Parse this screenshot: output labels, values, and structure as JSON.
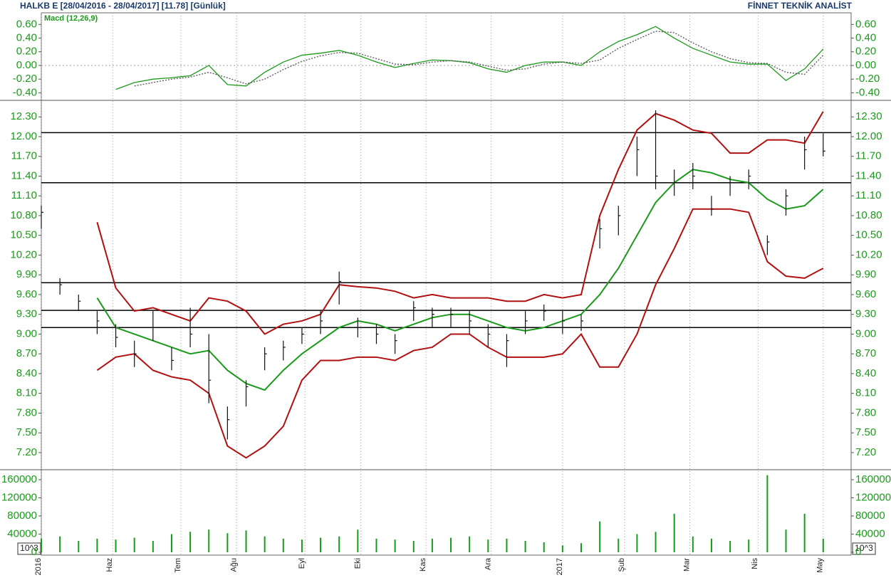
{
  "header": {
    "title": "HALKB E  [28/04/2016 - 28/04/2017]  [11.78]  [Günlük]",
    "brand": "FİNNET TEKNİK ANALİST"
  },
  "chart_data": [
    {
      "type": "line",
      "subtitle": "Macd (12,26,9)",
      "x": [
        0,
        6,
        12,
        18,
        24,
        30,
        36,
        42,
        48,
        54,
        60,
        66,
        72,
        78,
        84,
        90,
        96,
        102,
        108,
        114,
        120,
        126,
        132,
        138,
        144,
        150,
        156,
        162,
        168,
        174,
        180,
        186,
        192,
        198,
        204,
        210,
        216,
        222,
        228,
        234,
        240,
        246,
        252
      ],
      "series": [
        {
          "color": "#1a9a1a",
          "dash": false,
          "values": [
            null,
            null,
            null,
            null,
            -0.35,
            -0.25,
            -0.2,
            -0.18,
            -0.15,
            0.0,
            -0.28,
            -0.3,
            -0.1,
            0.05,
            0.15,
            0.18,
            0.22,
            0.15,
            0.05,
            -0.03,
            0.03,
            0.08,
            0.07,
            0.04,
            -0.05,
            -0.1,
            0.0,
            0.05,
            0.05,
            0.0,
            0.2,
            0.35,
            0.45,
            0.57,
            0.4,
            0.25,
            0.15,
            0.05,
            0.02,
            0.02,
            -0.22,
            -0.05,
            0.24
          ]
        },
        {
          "color": "#555555",
          "dash": true,
          "values": [
            null,
            null,
            null,
            null,
            null,
            -0.3,
            -0.25,
            -0.2,
            -0.17,
            -0.1,
            -0.18,
            -0.27,
            -0.2,
            -0.06,
            0.06,
            0.14,
            0.19,
            0.18,
            0.1,
            0.02,
            0.01,
            0.05,
            0.07,
            0.05,
            -0.01,
            -0.07,
            -0.05,
            0.02,
            0.05,
            0.03,
            0.08,
            0.25,
            0.38,
            0.5,
            0.48,
            0.33,
            0.2,
            0.1,
            0.04,
            0.03,
            -0.1,
            -0.13,
            0.15
          ]
        }
      ],
      "zero": 0,
      "ylim": [
        -0.5,
        0.77
      ],
      "yticks": [
        {
          "value": 0.6,
          "label": "0.60"
        },
        {
          "value": 0.4,
          "label": "0.40"
        },
        {
          "value": 0.2,
          "label": "0.20"
        },
        {
          "value": 0,
          "label": "0.00"
        },
        {
          "value": -0.2,
          "label": "-0.20"
        },
        {
          "value": -0.4,
          "label": "-0.40"
        }
      ]
    },
    {
      "type": "ohlc",
      "x": [
        0,
        6,
        12,
        18,
        24,
        30,
        36,
        42,
        48,
        54,
        60,
        66,
        72,
        78,
        84,
        90,
        96,
        102,
        108,
        114,
        120,
        126,
        132,
        138,
        144,
        150,
        156,
        162,
        168,
        174,
        180,
        186,
        192,
        198,
        204,
        210,
        216,
        222,
        228,
        234,
        240,
        246,
        252
      ],
      "high": [
        10.95,
        9.85,
        9.6,
        9.35,
        9.15,
        8.9,
        9.35,
        8.8,
        9.4,
        9.0,
        7.9,
        8.3,
        8.8,
        8.9,
        9.1,
        9.35,
        9.95,
        9.25,
        9.15,
        9.0,
        9.5,
        9.4,
        9.4,
        9.35,
        9.15,
        9.0,
        9.35,
        9.45,
        9.35,
        9.3,
        10.75,
        10.95,
        12.0,
        12.4,
        11.5,
        11.6,
        11.1,
        11.4,
        11.5,
        10.5,
        11.2,
        12.0,
        12.05
      ],
      "low": [
        10.6,
        9.6,
        9.35,
        9.0,
        8.8,
        8.5,
        8.9,
        8.45,
        8.8,
        7.95,
        7.4,
        7.9,
        8.45,
        8.6,
        8.85,
        9.0,
        9.45,
        8.95,
        8.85,
        8.7,
        9.2,
        9.1,
        9.1,
        9.0,
        8.8,
        8.5,
        9.0,
        9.2,
        9.0,
        9.05,
        10.3,
        10.5,
        11.4,
        11.2,
        11.1,
        11.2,
        10.8,
        11.1,
        11.2,
        10.2,
        10.8,
        11.5,
        11.7
      ],
      "close": [
        10.85,
        9.75,
        9.5,
        9.2,
        8.95,
        8.7,
        9.1,
        8.6,
        9.0,
        8.3,
        7.7,
        8.2,
        8.7,
        8.8,
        9.0,
        9.2,
        9.8,
        9.1,
        9.0,
        8.9,
        9.4,
        9.3,
        9.3,
        9.2,
        9.0,
        8.9,
        9.2,
        9.35,
        9.2,
        9.2,
        10.6,
        10.8,
        11.8,
        11.4,
        11.3,
        11.4,
        10.9,
        11.3,
        11.4,
        10.4,
        11.1,
        11.8,
        11.78
      ],
      "series": [
        {
          "color": "#b01010",
          "values": [
            null,
            null,
            null,
            10.7,
            9.7,
            9.35,
            9.4,
            9.3,
            9.2,
            9.55,
            9.5,
            9.35,
            9.0,
            9.15,
            9.2,
            9.3,
            9.75,
            9.72,
            9.7,
            9.65,
            9.55,
            9.6,
            9.55,
            9.55,
            9.55,
            9.5,
            9.5,
            9.6,
            9.55,
            9.6,
            10.8,
            11.5,
            12.1,
            12.35,
            12.25,
            12.1,
            12.05,
            11.75,
            11.75,
            11.95,
            11.95,
            11.9,
            12.38
          ]
        },
        {
          "color": "#1a9a1a",
          "values": [
            null,
            null,
            null,
            9.55,
            9.1,
            9.0,
            8.9,
            8.8,
            8.7,
            8.75,
            8.45,
            8.25,
            8.15,
            8.45,
            8.7,
            8.9,
            9.1,
            9.2,
            9.15,
            9.05,
            9.15,
            9.25,
            9.3,
            9.3,
            9.2,
            9.1,
            9.05,
            9.1,
            9.2,
            9.3,
            9.6,
            10.0,
            10.5,
            11.0,
            11.3,
            11.5,
            11.45,
            11.35,
            11.3,
            11.05,
            10.9,
            10.95,
            11.2
          ]
        },
        {
          "color": "#b01010",
          "values": [
            null,
            null,
            null,
            8.45,
            8.65,
            8.7,
            8.45,
            8.35,
            8.3,
            8.1,
            7.3,
            7.12,
            7.3,
            7.6,
            8.3,
            8.6,
            8.6,
            8.65,
            8.65,
            8.6,
            8.75,
            8.8,
            9.0,
            9.0,
            8.8,
            8.65,
            8.65,
            8.65,
            8.7,
            9.0,
            8.5,
            8.5,
            9.0,
            9.75,
            10.3,
            10.9,
            10.9,
            10.9,
            10.85,
            10.1,
            9.88,
            9.85,
            10.0
          ]
        }
      ],
      "hlines": [
        12.06,
        11.3,
        9.78,
        9.36,
        9.1
      ],
      "ylim": [
        6.94,
        12.54
      ],
      "yticks": [
        {
          "value": 12.3,
          "label": "12.30"
        },
        {
          "value": 12.0,
          "label": "12.00"
        },
        {
          "value": 11.7,
          "label": "11.70"
        },
        {
          "value": 11.4,
          "label": "11.40"
        },
        {
          "value": 11.1,
          "label": "11.10"
        },
        {
          "value": 10.8,
          "label": "10.80"
        },
        {
          "value": 10.5,
          "label": "10.50"
        },
        {
          "value": 10.2,
          "label": "10.20"
        },
        {
          "value": 9.9,
          "label": "9.90"
        },
        {
          "value": 9.6,
          "label": "9.60"
        },
        {
          "value": 9.3,
          "label": "9.30"
        },
        {
          "value": 9.0,
          "label": "9.00"
        },
        {
          "value": 8.7,
          "label": "8.70"
        },
        {
          "value": 8.4,
          "label": "8.40"
        },
        {
          "value": 8.1,
          "label": "8.10"
        },
        {
          "value": 7.8,
          "label": "7.80"
        },
        {
          "value": 7.5,
          "label": "7.50"
        },
        {
          "value": 7.2,
          "label": "7.20"
        }
      ]
    },
    {
      "type": "bar",
      "unit_label": "10^3",
      "color": "#1a9a1a",
      "x": [
        0,
        6,
        12,
        18,
        24,
        30,
        36,
        42,
        48,
        54,
        60,
        66,
        72,
        78,
        84,
        90,
        96,
        102,
        108,
        114,
        120,
        126,
        132,
        138,
        144,
        150,
        156,
        162,
        168,
        174,
        180,
        186,
        192,
        198,
        204,
        210,
        216,
        222,
        228,
        234,
        240,
        246,
        252
      ],
      "values": [
        30000,
        35000,
        25000,
        30000,
        28000,
        32000,
        25000,
        40000,
        45000,
        50000,
        42000,
        48000,
        35000,
        30000,
        28000,
        32000,
        35000,
        50000,
        30000,
        28000,
        25000,
        30000,
        32000,
        35000,
        28000,
        30000,
        25000,
        22000,
        15000,
        20000,
        68000,
        30000,
        40000,
        45000,
        85000,
        35000,
        30000,
        25000,
        28000,
        170000,
        50000,
        85000,
        30000
      ],
      "ylim": [
        0,
        182000
      ],
      "yticks": [
        0,
        40000,
        80000,
        120000,
        160000
      ]
    }
  ],
  "xticks": [
    {
      "value": 0,
      "label": "2016"
    },
    {
      "value": 23,
      "label": "Haz"
    },
    {
      "value": 45,
      "label": "Tem"
    },
    {
      "value": 63,
      "label": "Ağu"
    },
    {
      "value": 85,
      "label": "Eyl"
    },
    {
      "value": 103,
      "label": "Eki"
    },
    {
      "value": 124,
      "label": "Kas"
    },
    {
      "value": 145,
      "label": "Ara"
    },
    {
      "value": 168,
      "label": "2017"
    },
    {
      "value": 188,
      "label": "Şub"
    },
    {
      "value": 209,
      "label": "Mar"
    },
    {
      "value": 231,
      "label": "Nis"
    },
    {
      "value": 252,
      "label": "May"
    }
  ],
  "xlim": [
    0,
    261
  ]
}
